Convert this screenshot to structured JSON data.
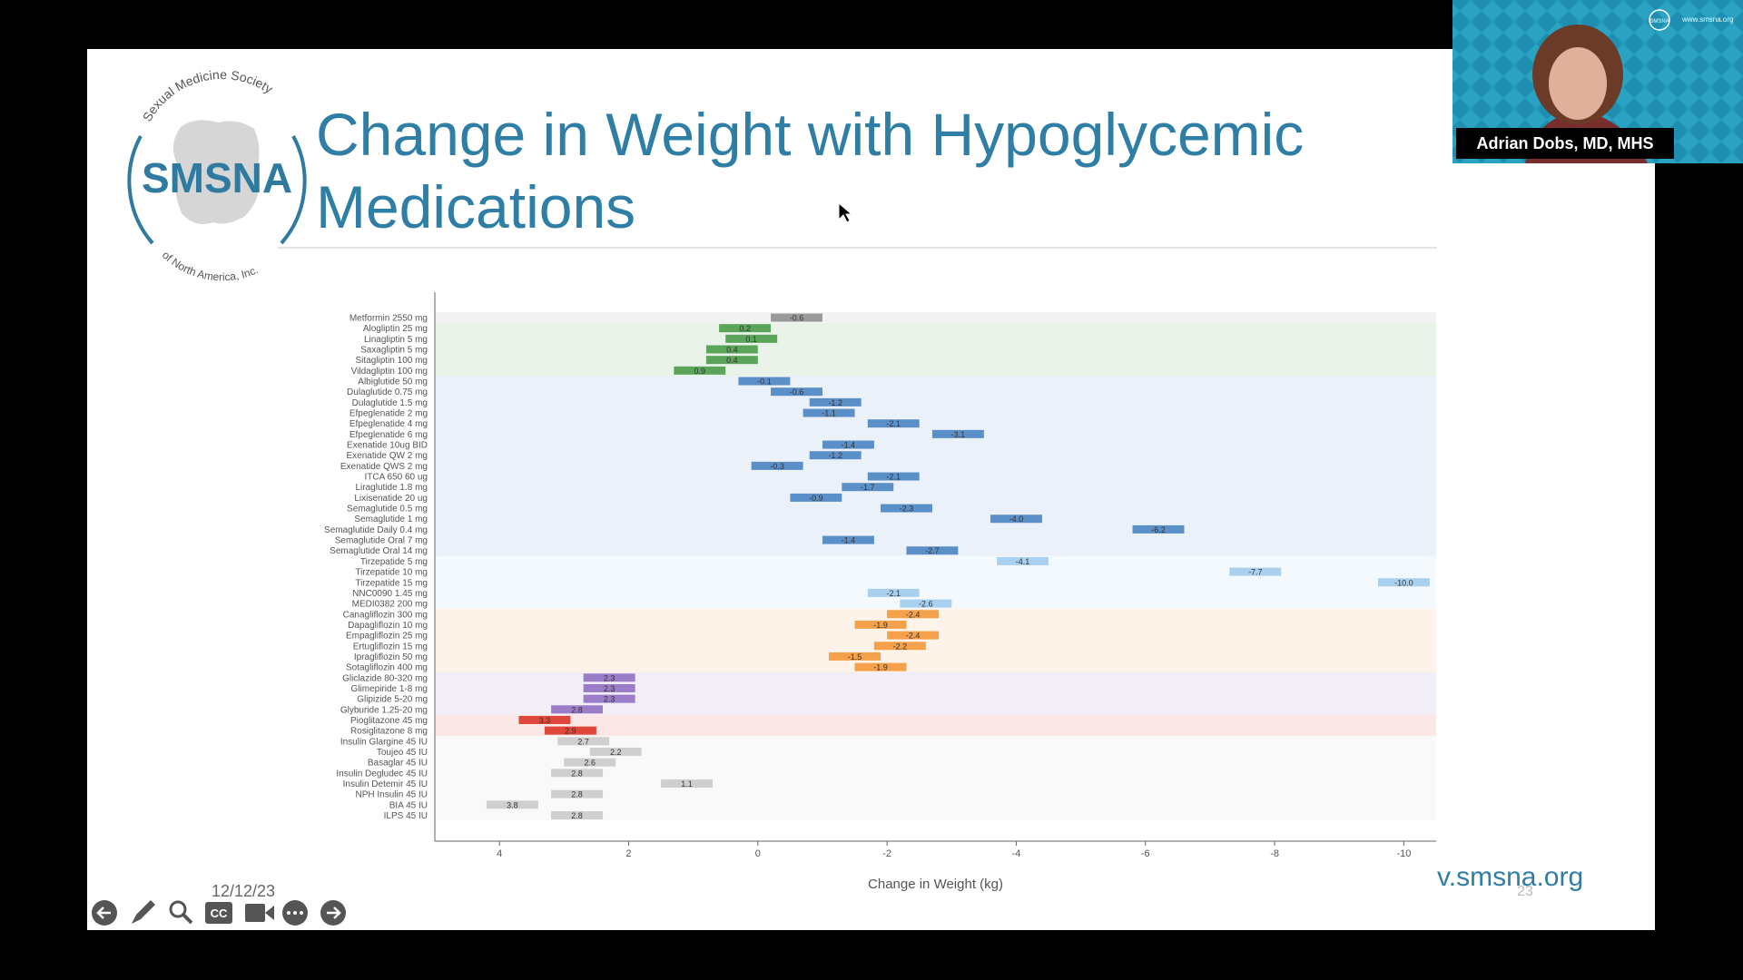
{
  "webcam": {
    "name": "Adrian Dobs, MD, MHS",
    "logo": "SMSNA",
    "url": "www.smsna.org"
  },
  "slide": {
    "logo": {
      "top": "Sexual Medicine Society",
      "main": "SMSNA",
      "bottom": "of North America, Inc."
    },
    "title_lines": [
      "Change in Weight with Hypoglycemic",
      "Medications"
    ],
    "date": "12/12/23",
    "website": "v.smsna.org",
    "page": "23"
  },
  "chart_data": {
    "type": "bar",
    "horizontal": true,
    "categories": [
      "Metformin 2550 mg",
      "Alogliptin 25 mg",
      "Linagliptin 5 mg",
      "Saxagliptin 5 mg",
      "Sitagliptin 100 mg",
      "Vildagliptin 100 mg",
      "Albiglutide 50 mg",
      "Dulaglutide 0.75 mg",
      "Dulaglutide 1.5 mg",
      "Efpeglenatide 2 mg",
      "Efpeglenatide 4 mg",
      "Efpeglenatide 6 mg",
      "Exenatide 10ug BID",
      "Exenatide QW 2 mg",
      "Exenatide QWS 2 mg",
      "ITCA 650 60 ug",
      "Liraglutide 1.8 mg",
      "Lixisenatide 20 ug",
      "Semaglutide 0.5 mg",
      "Semaglutide 1 mg",
      "Semaglutide Daily 0.4 mg",
      "Semaglutide Oral 7 mg",
      "Semaglutide Oral 14 mg",
      "Tirzepatide 5 mg",
      "Tirzepatide 10 mg",
      "Tirzepatide 15 mg",
      "NNC0090 1.45 mg",
      "MEDI0382 200 mg",
      "Canagliflozin 300 mg",
      "Dapagliflozin 10 mg",
      "Empagliflozin 25 mg",
      "Ertugliflozin 15 mg",
      "Ipragliflozin 50 mg",
      "Sotagliflozin 400 mg",
      "Gliclazide 80-320 mg",
      "Glimepiride 1-8 mg",
      "Glipizide 5-20 mg",
      "Glyburide 1.25-20 mg",
      "Pioglitazone 45 mg",
      "Rosiglitazone 8 mg",
      "Insulin Glargine 45 IU",
      "Toujeo 45 IU",
      "Basaglar 45 IU",
      "Insulin Degludec 45 IU",
      "Insulin Detemir 45 IU",
      "NPH Insulin 45 IU",
      "BIA 45 IU",
      "ILPS 45 IU"
    ],
    "values": [
      -0.6,
      0.2,
      0.1,
      0.4,
      0.4,
      0.9,
      -0.1,
      -0.6,
      -1.2,
      -1.1,
      -2.1,
      -3.1,
      -1.4,
      -1.2,
      -0.3,
      -2.1,
      -1.7,
      -0.9,
      -2.3,
      -4.0,
      -6.2,
      -1.4,
      -2.7,
      -4.1,
      -7.7,
      -10.0,
      -2.1,
      -2.6,
      -2.4,
      -1.9,
      -2.4,
      -2.2,
      -1.5,
      -1.9,
      2.3,
      2.3,
      2.3,
      2.8,
      3.3,
      2.9,
      2.7,
      2.2,
      2.6,
      2.8,
      1.1,
      2.8,
      3.8,
      2.8
    ],
    "value_labels": [
      "-0.6",
      "0.2",
      "0.1",
      "0.4",
      "0.4",
      "0.9",
      "-0.1",
      "-0.6",
      "-1.2",
      "-1.1",
      "-2.1",
      "-3.1",
      "-1.4",
      "-1.2",
      "-0.3",
      "-2.1",
      "-1.7",
      "-0.9",
      "-2.3",
      "-4.0",
      "-6.2",
      "-1.4",
      "-2.7",
      "-4.1",
      "-7.7",
      "-10.0",
      "-2.1",
      "-2.6",
      "-2.4",
      "-1.9",
      "-2.4",
      "-2.2",
      "-1.5",
      "-1.9",
      "2.3",
      "2.3",
      "2.3",
      "2.8",
      "3.3",
      "2.9",
      "2.7",
      "2.2",
      "2.6",
      "2.8",
      "1.1",
      "2.8",
      "3.8",
      "2.8"
    ],
    "colors": [
      "#9a9a9a",
      "#5aa55a",
      "#5aa55a",
      "#5aa55a",
      "#5aa55a",
      "#5aa55a",
      "#5b8fc7",
      "#5b8fc7",
      "#5b8fc7",
      "#5b8fc7",
      "#5b8fc7",
      "#5b8fc7",
      "#5b8fc7",
      "#5b8fc7",
      "#5b8fc7",
      "#5b8fc7",
      "#5b8fc7",
      "#5b8fc7",
      "#5b8fc7",
      "#5b8fc7",
      "#5b8fc7",
      "#5b8fc7",
      "#5b8fc7",
      "#a9d0ee",
      "#a9d0ee",
      "#a9d0ee",
      "#a9d0ee",
      "#a9d0ee",
      "#f5a04a",
      "#f5a04a",
      "#f5a04a",
      "#f5a04a",
      "#f5a04a",
      "#f5a04a",
      "#9b7cc8",
      "#9b7cc8",
      "#9b7cc8",
      "#9b7cc8",
      "#e0463a",
      "#e0463a",
      "#cfcfcf",
      "#cfcfcf",
      "#cfcfcf",
      "#cfcfcf",
      "#cfcfcf",
      "#cfcfcf",
      "#cfcfcf",
      "#cfcfcf"
    ],
    "xlabel": "Change in Weight (kg)",
    "xlim": [
      5,
      -10.5
    ],
    "xticks": [
      4,
      2,
      0,
      -2,
      -4,
      -6,
      -8,
      -10
    ]
  }
}
